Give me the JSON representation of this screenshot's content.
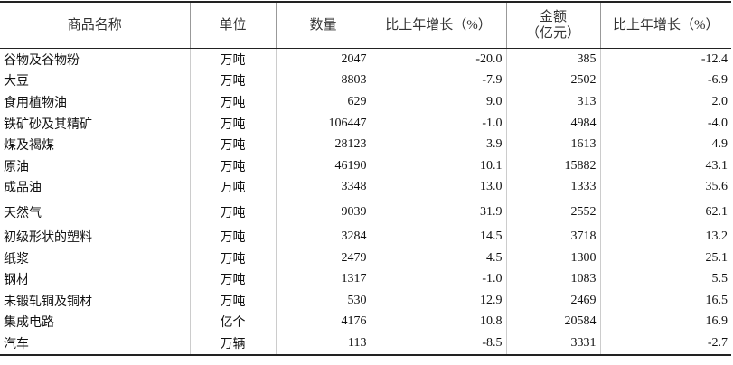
{
  "table": {
    "header": [
      "商品名称",
      "单位",
      "数量",
      "比上年增长（%）",
      [
        "金额",
        "（亿元）"
      ],
      "比上年增长（%）"
    ],
    "rows": [
      [
        "谷物及谷物粉",
        "万吨",
        "2047",
        "-20.0",
        "385",
        "-12.4"
      ],
      [
        "大豆",
        "万吨",
        "8803",
        "-7.9",
        "2502",
        "-6.9"
      ],
      [
        "食用植物油",
        "万吨",
        "629",
        "9.0",
        "313",
        "2.0"
      ],
      [
        "铁矿砂及其精矿",
        "万吨",
        "106447",
        "-1.0",
        "4984",
        "-4.0"
      ],
      [
        "煤及褐煤",
        "万吨",
        "28123",
        "3.9",
        "1613",
        "4.9"
      ],
      [
        "原油",
        "万吨",
        "46190",
        "10.1",
        "15882",
        "43.1"
      ],
      [
        "成品油",
        "万吨",
        "3348",
        "13.0",
        "1333",
        "35.6"
      ],
      [
        "天然气",
        "万吨",
        "9039",
        "31.9",
        "2552",
        "62.1"
      ],
      [
        "初级形状的塑料",
        "万吨",
        "3284",
        "14.5",
        "3718",
        "13.2"
      ],
      [
        "纸浆",
        "万吨",
        "2479",
        "4.5",
        "1300",
        "25.1"
      ],
      [
        "钢材",
        "万吨",
        "1317",
        "-1.0",
        "1083",
        "5.5"
      ],
      [
        "未锻轧铜及铜材",
        "万吨",
        "530",
        "12.9",
        "2469",
        "16.5"
      ],
      [
        "集成电路",
        "亿个",
        "4176",
        "10.8",
        "20584",
        "16.9"
      ],
      [
        "汽车",
        "万辆",
        "113",
        "-8.5",
        "3331",
        "-2.7"
      ]
    ]
  }
}
